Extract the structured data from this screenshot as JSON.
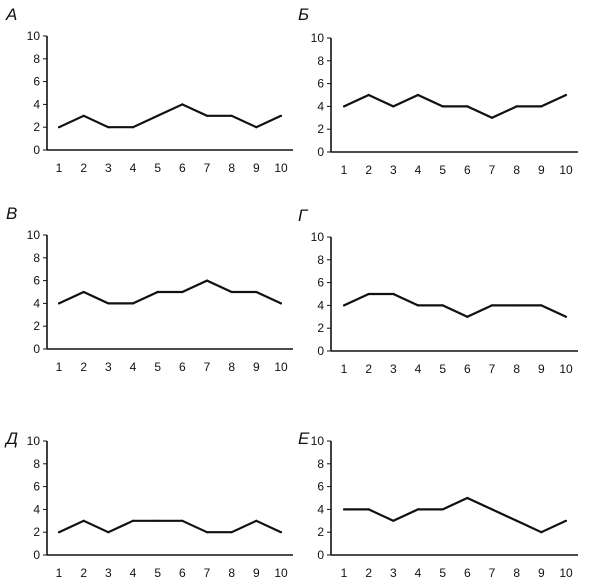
{
  "chart_data": [
    {
      "type": "line",
      "title": "А",
      "categories": [
        "1",
        "2",
        "3",
        "4",
        "5",
        "6",
        "7",
        "8",
        "9",
        "10"
      ],
      "values": [
        2,
        3,
        2,
        2,
        3,
        4,
        3,
        3,
        2,
        3
      ],
      "y_ticks": [
        "0",
        "2",
        "4",
        "6",
        "8",
        "10"
      ],
      "ylim": [
        0,
        10
      ]
    },
    {
      "type": "line",
      "title": "Б",
      "categories": [
        "1",
        "2",
        "3",
        "4",
        "5",
        "6",
        "7",
        "8",
        "9",
        "10"
      ],
      "values": [
        4,
        5,
        4,
        5,
        4,
        4,
        3,
        4,
        4,
        5
      ],
      "y_ticks": [
        "0",
        "2",
        "4",
        "6",
        "8",
        "10"
      ],
      "ylim": [
        0,
        10
      ]
    },
    {
      "type": "line",
      "title": "В",
      "categories": [
        "1",
        "2",
        "3",
        "4",
        "5",
        "6",
        "7",
        "8",
        "9",
        "10"
      ],
      "values": [
        4,
        5,
        4,
        4,
        5,
        5,
        6,
        5,
        5,
        4
      ],
      "y_ticks": [
        "0",
        "2",
        "4",
        "6",
        "8",
        "10"
      ],
      "ylim": [
        0,
        10
      ]
    },
    {
      "type": "line",
      "title": "Г",
      "categories": [
        "1",
        "2",
        "3",
        "4",
        "5",
        "6",
        "7",
        "8",
        "9",
        "10"
      ],
      "values": [
        4,
        5,
        5,
        4,
        4,
        3,
        4,
        4,
        4,
        3
      ],
      "y_ticks": [
        "0",
        "2",
        "4",
        "6",
        "8",
        "10"
      ],
      "ylim": [
        0,
        10
      ]
    },
    {
      "type": "line",
      "title": "Д",
      "categories": [
        "1",
        "2",
        "3",
        "4",
        "5",
        "6",
        "7",
        "8",
        "9",
        "10"
      ],
      "values": [
        2,
        3,
        2,
        3,
        3,
        3,
        2,
        2,
        3,
        2
      ],
      "y_ticks": [
        "0",
        "2",
        "4",
        "6",
        "8",
        "10"
      ],
      "ylim": [
        0,
        10
      ]
    },
    {
      "type": "line",
      "title": "Е",
      "categories": [
        "1",
        "2",
        "3",
        "4",
        "5",
        "6",
        "7",
        "8",
        "9",
        "10"
      ],
      "values": [
        4,
        4,
        3,
        4,
        4,
        5,
        4,
        3,
        2,
        3
      ],
      "y_ticks": [
        "0",
        "2",
        "4",
        "6",
        "8",
        "10"
      ],
      "ylim": [
        0,
        10
      ]
    }
  ]
}
